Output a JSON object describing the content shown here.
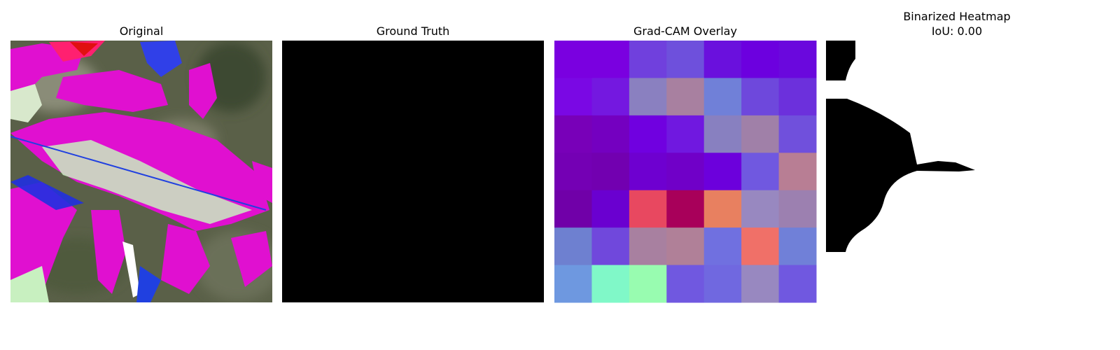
{
  "panels": [
    {
      "title": "Original"
    },
    {
      "title": "Ground Truth"
    },
    {
      "title": "Grad-CAM Overlay"
    },
    {
      "title": "Binarized Heatmap",
      "metric": "IoU: 0.00"
    }
  ]
}
